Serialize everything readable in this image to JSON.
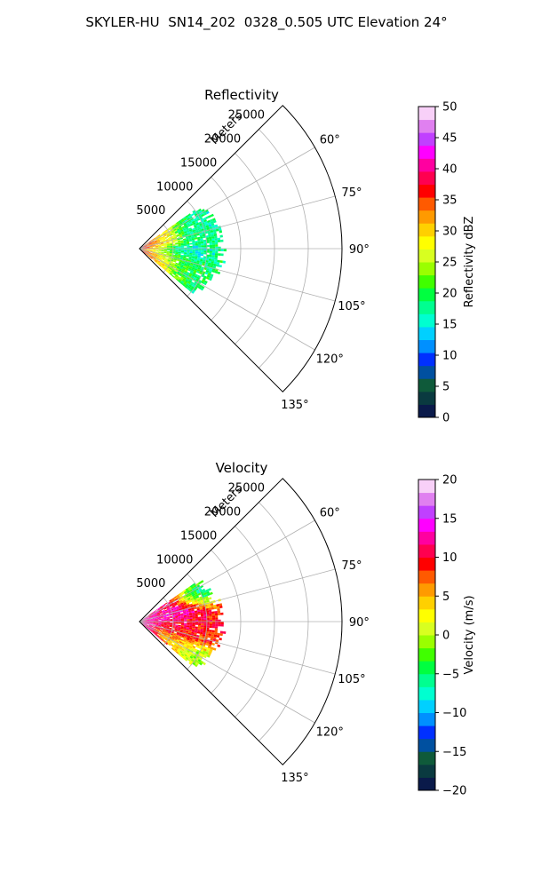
{
  "figure": {
    "title": "SKYLER-HU  SN14_202  0328_0.505 UTC Elevation 24°"
  },
  "chart_data": [
    {
      "type": "polar-sector",
      "title": "Reflectivity",
      "radial_label": "Meters",
      "range_ticks": [
        5000,
        10000,
        15000,
        20000,
        25000
      ],
      "range_tick_labels": [
        "5000",
        "10000",
        "15000",
        "20000",
        "25000"
      ],
      "r_max": 30000,
      "azimuth_range": [
        45,
        135
      ],
      "azimuth_ticks": [
        60,
        75,
        90,
        105,
        120,
        135
      ],
      "azimuth_tick_labels": [
        "60°",
        "75°",
        "90°",
        "105°",
        "120°",
        "135°"
      ],
      "grid": true,
      "data_extent": {
        "min_azimuth": 55,
        "max_azimuth": 130,
        "max_range": 12500
      },
      "colorbar": {
        "label": "Reflectivity dBZ",
        "min": 0,
        "max": 50,
        "ticks": [
          0,
          5,
          10,
          15,
          20,
          25,
          30,
          35,
          40,
          45,
          50
        ],
        "tick_labels": [
          "0",
          "5",
          "10",
          "15",
          "20",
          "25",
          "30",
          "35",
          "40",
          "45",
          "50"
        ],
        "stops": [
          "#0a1a4a",
          "#0a3a40",
          "#0f5a3a",
          "#0050a0",
          "#0030ff",
          "#0090ff",
          "#00d0ff",
          "#00ffd0",
          "#00ff90",
          "#00ff40",
          "#40ff00",
          "#9aff00",
          "#d8ff20",
          "#ffff00",
          "#ffd000",
          "#ff9a00",
          "#ff5a00",
          "#ff0000",
          "#ff0050",
          "#ff00a0",
          "#ff00ff",
          "#c040ff",
          "#e080f0",
          "#f8d0f8"
        ]
      },
      "field": {
        "near_value": 37,
        "far_value": 18,
        "blobs": [
          {
            "azimuth": 66,
            "range": 9500,
            "value": 17
          },
          {
            "azimuth": 95,
            "range": 6000,
            "value": 12
          },
          {
            "azimuth": 100,
            "range": 4000,
            "value": 27
          },
          {
            "azimuth": 112,
            "range": 8000,
            "value": 20
          }
        ]
      }
    },
    {
      "type": "polar-sector",
      "title": "Velocity",
      "radial_label": "Meters",
      "range_ticks": [
        5000,
        10000,
        15000,
        20000,
        25000
      ],
      "range_tick_labels": [
        "5000",
        "10000",
        "15000",
        "20000",
        "25000"
      ],
      "r_max": 30000,
      "azimuth_range": [
        45,
        135
      ],
      "azimuth_ticks": [
        60,
        75,
        90,
        105,
        120,
        135
      ],
      "azimuth_tick_labels": [
        "60°",
        "75°",
        "90°",
        "105°",
        "120°",
        "135°"
      ],
      "grid": true,
      "data_extent": {
        "min_azimuth": 55,
        "max_azimuth": 130,
        "max_range": 12500
      },
      "colorbar": {
        "label": "Velocity (m/s)",
        "min": -20,
        "max": 20,
        "ticks": [
          -20,
          -15,
          -10,
          -5,
          0,
          5,
          10,
          15,
          20
        ],
        "tick_labels": [
          "−20",
          "−15",
          "−10",
          "−5",
          "0",
          "5",
          "10",
          "15",
          "20"
        ],
        "stops": [
          "#0a1a4a",
          "#0a3a40",
          "#0f5a3a",
          "#0050a0",
          "#0030ff",
          "#0090ff",
          "#00d0ff",
          "#00ffd0",
          "#00ff90",
          "#00ff40",
          "#40ff00",
          "#9aff00",
          "#d8ff20",
          "#ffff00",
          "#ffd000",
          "#ff9a00",
          "#ff5a00",
          "#ff0000",
          "#ff0050",
          "#ff00a0",
          "#ff00ff",
          "#c040ff",
          "#e080f0",
          "#f8d0f8"
        ]
      },
      "field": {
        "near_value": 13,
        "far_value": 9,
        "blobs": [
          {
            "azimuth": 63,
            "range": 10000,
            "value": -11
          },
          {
            "azimuth": 75,
            "range": 6000,
            "value": 14
          },
          {
            "azimuth": 90,
            "range": 7000,
            "value": 10
          },
          {
            "azimuth": 105,
            "range": 6000,
            "value": 9
          },
          {
            "azimuth": 118,
            "range": 6000,
            "value": 2
          },
          {
            "azimuth": 123,
            "range": 10000,
            "value": -5
          }
        ]
      }
    }
  ]
}
